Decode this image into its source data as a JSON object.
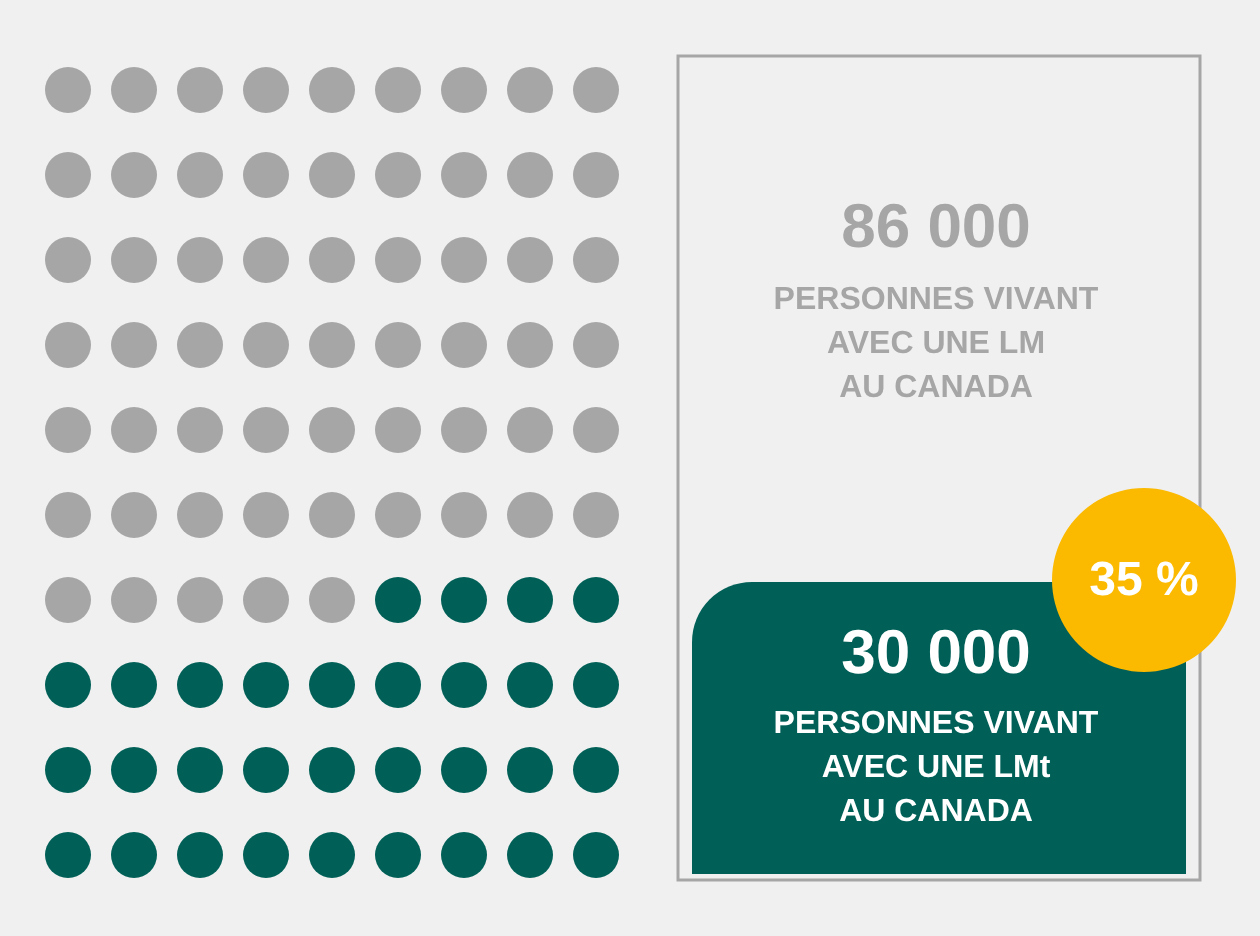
{
  "chart_data": {
    "type": "other",
    "categories": [
      "PERSONNES VIVANT\nAVEC UNE LM\nAU CANADA",
      "PERSONNES VIVANT\nAVEC UNE LMt\nAU CANADA"
    ],
    "values": [
      86000,
      30000
    ],
    "value_labels": [
      "86 000",
      "30 000"
    ],
    "colors": [
      "#a6a6a6",
      "#006057"
    ],
    "annotations": [
      "35 %"
    ]
  }
}
